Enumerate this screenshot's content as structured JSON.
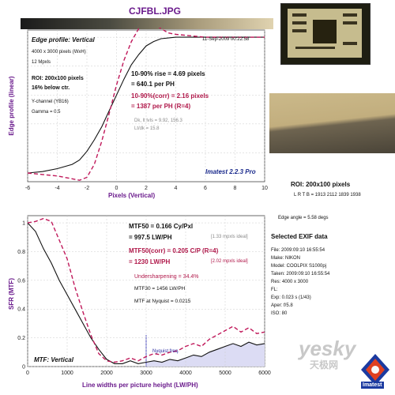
{
  "header": {
    "filename": "CJFBL.JPG"
  },
  "top_plot": {
    "title": "Edge profile: Vertical",
    "timestamp": "11-Sep-2009 00:22:58",
    "info_lines": [
      "4000 x 3000 pixels (WxH)",
      "12 Mpxls"
    ],
    "roi_lines": [
      "ROI: 200x100 pixels",
      "16% below ctr."
    ],
    "channel_lines": [
      "Y-channel (YB16)",
      "Gamma = 0.5"
    ],
    "rise_lines": [
      "10-90% rise = 4.69 pixels",
      "= 640.1 per PH"
    ],
    "corr_lines": [
      "10-90%(corr) = 2.16 pixels",
      "= 1387 per PH  (R=4)"
    ],
    "dk_lines": [
      "Dk, lt lvls = 9.92, 156.3",
      "Lt/dk = 15.8"
    ],
    "version": "Imatest 2.2.3 Pro",
    "ylabel": "Edge profile (linear)",
    "xlabel": "Pixels (Vertical)"
  },
  "bottom_plot": {
    "title": "MTF: Vertical",
    "ylabel": "SFR (MTF)",
    "xlabel": "Line widths per picture height (LW/PH)",
    "mtf50_lines": [
      "MTF50 = 0.166 Cy/Pxl",
      "= 997.5 LW/PH"
    ],
    "mtf50_ideal": "[1.33 mpxls ideal]",
    "mtf50corr_lines": [
      "MTF50(corr) = 0.205 C/P  (R=4)",
      "= 1230 LW/PH"
    ],
    "mtf50corr_ideal": "[2.02 mpxls ideal]",
    "undersharpening": "Undersharpening = 34.4%",
    "mtf30": "MTF30 = 1456 LW/PH",
    "mtf_nyquist": "MTF at Nyquist = 0.0215",
    "nyquist_label": "Nyquist freq."
  },
  "side": {
    "roi_title": "ROI: 200x100 pixels",
    "lrtb": "L R T B = 1913 2112 1839 1938",
    "edge_angle": "Edge angle = 5.58 degs",
    "exif_title": "Selected EXIF data",
    "exif_lines": [
      "File:  2009:09:10 16:55:54",
      "Make:  NIKON",
      "Model:  COOLPIX S1000pj",
      "Taken:  2009:09:10 16:55:54",
      "Res:  4000 x 3000",
      "FL:",
      "Exp:  0.023 s  (1/43)",
      "Aper:  f/5.8",
      "ISO:  80"
    ],
    "watermark_main": "yesky",
    "watermark_sub": "天极网",
    "logo_text": "Imatest"
  },
  "colors": {
    "measured": "#111111",
    "corrected": "#c0185a",
    "nyquist_fill": "#dcdcf4",
    "label_purple": "#6a1a8c"
  },
  "chart_data": [
    {
      "type": "line",
      "title": "Edge profile: Vertical",
      "xlabel": "Pixels (Vertical)",
      "ylabel": "Edge profile (linear)",
      "xlim": [
        -6,
        10
      ],
      "ylim": [
        0,
        1.05
      ],
      "xticks": [
        -6,
        -4,
        -2,
        0,
        2,
        4,
        6,
        8,
        10
      ],
      "grid": true,
      "series": [
        {
          "style": "solid",
          "x": [
            -6,
            -5,
            -4,
            -3,
            -2.5,
            -2,
            -1.5,
            -1,
            -0.5,
            0,
            0.5,
            1,
            1.5,
            2,
            2.5,
            3,
            4,
            5,
            6,
            7,
            8,
            9,
            10
          ],
          "y": [
            0.06,
            0.07,
            0.09,
            0.12,
            0.15,
            0.21,
            0.29,
            0.38,
            0.49,
            0.6,
            0.71,
            0.81,
            0.88,
            0.94,
            0.97,
            0.99,
            1.0,
            1.0,
            1.0,
            1.0,
            1.0,
            1.0,
            1.0
          ]
        },
        {
          "style": "dashed",
          "x": [
            -6,
            -5,
            -4,
            -3,
            -2.5,
            -2,
            -1.5,
            -1,
            -0.5,
            0,
            0.5,
            1,
            1.5,
            2,
            2.5,
            3,
            3.5,
            4,
            5,
            6,
            7,
            8,
            9,
            10
          ],
          "y": [
            0.06,
            0.05,
            0.04,
            0.02,
            0.01,
            0.03,
            0.12,
            0.28,
            0.47,
            0.67,
            0.84,
            0.97,
            1.06,
            1.1,
            1.09,
            1.06,
            1.03,
            1.02,
            1.01,
            1.0,
            1.0,
            1.0,
            1.0,
            1.0
          ]
        }
      ]
    },
    {
      "type": "line",
      "title": "MTF: Vertical",
      "xlabel": "Line widths per picture height (LW/PH)",
      "ylabel": "SFR (MTF)",
      "xlim": [
        0,
        6000
      ],
      "ylim": [
        0,
        1.05
      ],
      "xticks": [
        0,
        1000,
        2000,
        3000,
        4000,
        5000,
        6000
      ],
      "yticks": [
        0,
        0.2,
        0.4,
        0.6,
        0.8,
        1
      ],
      "grid": true,
      "nyquist": 3000,
      "series": [
        {
          "style": "solid",
          "x": [
            0,
            200,
            400,
            600,
            800,
            1000,
            1200,
            1400,
            1600,
            1800,
            2000,
            2200,
            2400,
            2600,
            2800,
            3000,
            3200,
            3400,
            3600,
            3800,
            4000,
            4200,
            4400,
            4600,
            4800,
            5000,
            5200,
            5400,
            5600,
            5800,
            6000
          ],
          "y": [
            1.0,
            0.94,
            0.82,
            0.72,
            0.6,
            0.5,
            0.4,
            0.3,
            0.2,
            0.12,
            0.05,
            0.02,
            0.02,
            0.04,
            0.02,
            0.03,
            0.04,
            0.03,
            0.05,
            0.04,
            0.06,
            0.08,
            0.07,
            0.1,
            0.12,
            0.14,
            0.16,
            0.14,
            0.17,
            0.15,
            0.16
          ]
        },
        {
          "style": "dashed",
          "x": [
            0,
            200,
            400,
            600,
            800,
            1000,
            1200,
            1400,
            1600,
            1800,
            2000,
            2200,
            2400,
            2600,
            2800,
            3000,
            3200,
            3400,
            3600,
            3800,
            4000,
            4200,
            4400,
            4600,
            4800,
            5000,
            5200,
            5400,
            5600,
            5800,
            6000
          ],
          "y": [
            1.0,
            1.01,
            1.03,
            1.01,
            0.88,
            0.75,
            0.55,
            0.38,
            0.22,
            0.09,
            0.04,
            0.03,
            0.04,
            0.06,
            0.04,
            0.07,
            0.09,
            0.08,
            0.1,
            0.11,
            0.14,
            0.16,
            0.14,
            0.19,
            0.22,
            0.25,
            0.28,
            0.24,
            0.27,
            0.23,
            0.24
          ]
        }
      ]
    }
  ]
}
